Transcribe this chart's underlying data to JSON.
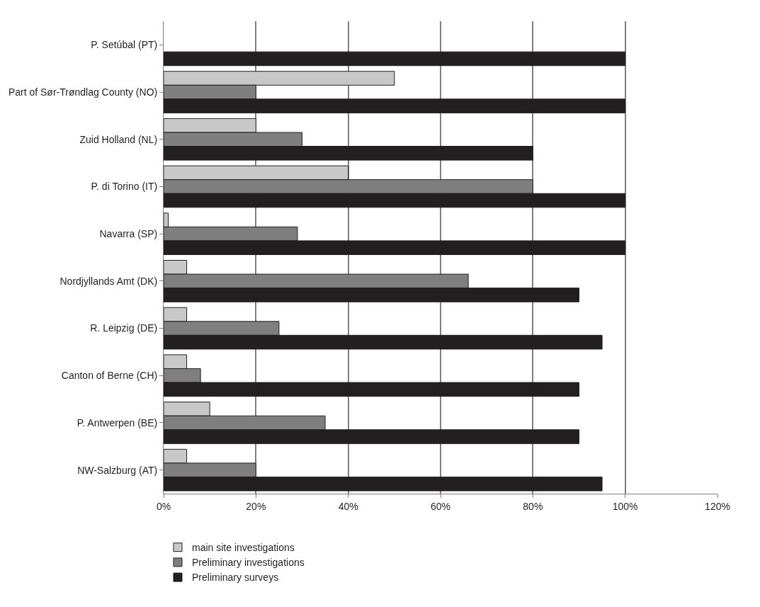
{
  "chart_data": {
    "type": "bar",
    "orientation": "horizontal",
    "categories": [
      "P. Setúbal (PT)",
      "Part of Sør-Trøndlag County (NO)",
      "Zuid Holland (NL)",
      "P. di Torino (IT)",
      "Navarra (SP)",
      "Nordjyllands Amt (DK)",
      "R. Leipzig (DE)",
      "Canton of Berne (CH)",
      "P. Antwerpen (BE)",
      "NW-Salzburg (AT)"
    ],
    "series": [
      {
        "name": "main site investigations",
        "color": "#c8c8c8",
        "values": [
          null,
          50,
          20,
          40,
          1,
          5,
          5,
          5,
          10,
          5
        ]
      },
      {
        "name": "Preliminary investigations",
        "color": "#7f7f7f",
        "values": [
          null,
          20,
          30,
          80,
          29,
          66,
          25,
          8,
          35,
          20
        ]
      },
      {
        "name": "Preliminary surveys",
        "color": "#231f20",
        "values": [
          100,
          100,
          80,
          100,
          100,
          90,
          95,
          90,
          90,
          95
        ]
      }
    ],
    "xlim": [
      0,
      120
    ],
    "xticks": [
      {
        "value": 0,
        "label": "0%"
      },
      {
        "value": 20,
        "label": "20%"
      },
      {
        "value": 40,
        "label": "40%"
      },
      {
        "value": 60,
        "label": "60%"
      },
      {
        "value": 80,
        "label": "80%"
      },
      {
        "value": 100,
        "label": "100%"
      },
      {
        "value": 120,
        "label": "120%"
      }
    ],
    "grid": "x",
    "legend": "bottom left"
  }
}
